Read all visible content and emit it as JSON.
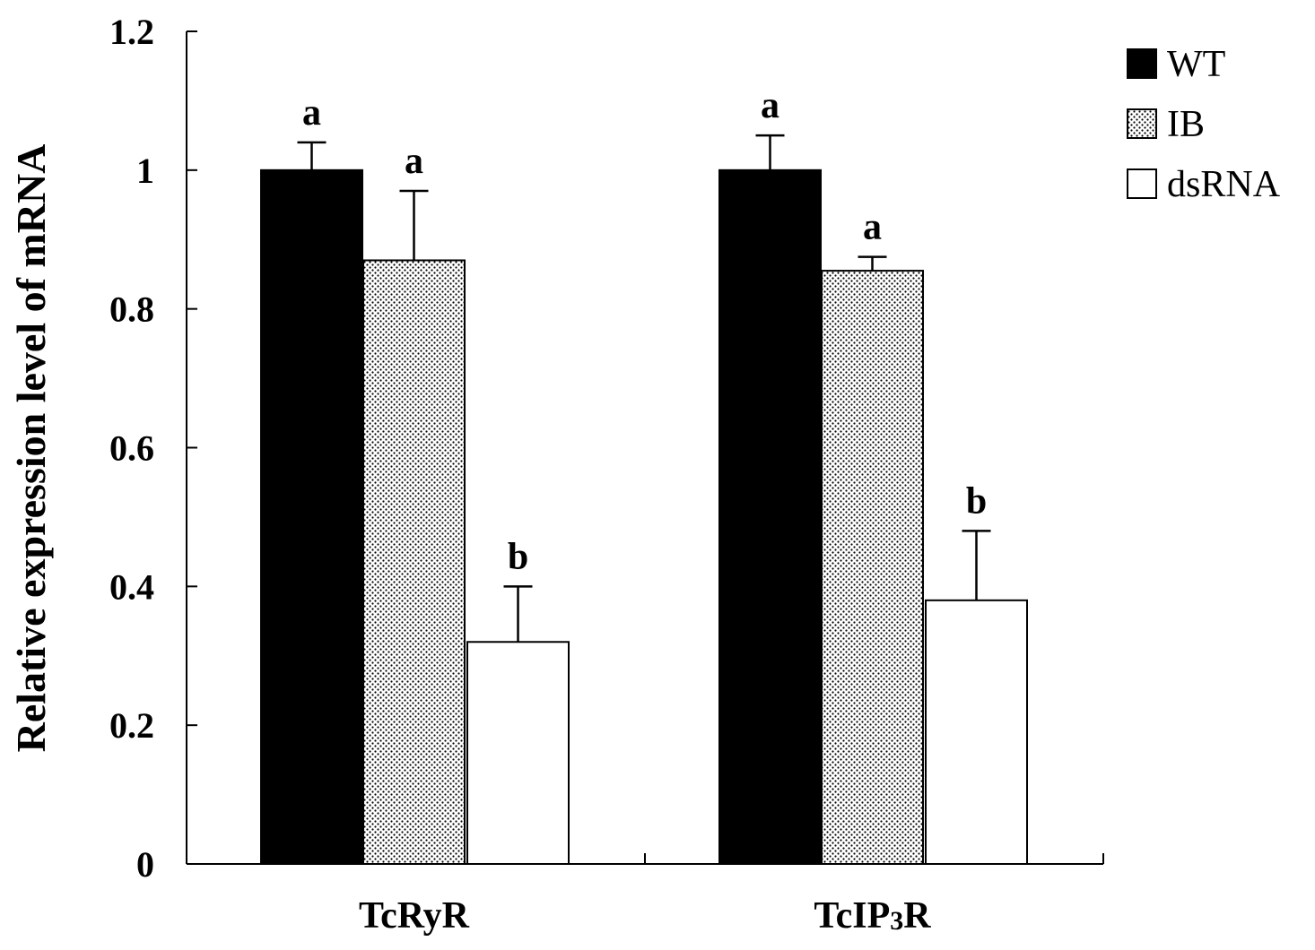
{
  "chart_data": {
    "type": "bar",
    "title": "",
    "xlabel": "",
    "ylabel": "Relative expression level of mRNA",
    "ylim": [
      0,
      1.2
    ],
    "yticks": [
      0,
      0.2,
      0.4,
      0.6,
      0.8,
      1,
      1.2
    ],
    "ytick_labels": [
      "0",
      "0.2",
      "0.4",
      "0.6",
      "0.8",
      "1",
      "1.2"
    ],
    "categories": [
      "TcRyR",
      "TcIP3R"
    ],
    "category_labels": [
      {
        "main": "TcRyR",
        "sub": ""
      },
      {
        "main": "TcIP",
        "sub": "3",
        "rest": "R"
      }
    ],
    "series": [
      {
        "name": "WT",
        "fill": "solid-black",
        "values": [
          1.0,
          1.0
        ],
        "errors": [
          0.04,
          0.05
        ],
        "letters": [
          "a",
          "a"
        ]
      },
      {
        "name": "IB",
        "fill": "dotted",
        "values": [
          0.87,
          0.855
        ],
        "errors": [
          0.1,
          0.02
        ],
        "letters": [
          "a",
          "a"
        ]
      },
      {
        "name": "dsRNA",
        "fill": "white",
        "values": [
          0.32,
          0.38
        ],
        "errors": [
          0.08,
          0.1
        ],
        "letters": [
          "b",
          "b"
        ]
      }
    ],
    "legend_position": "top-right",
    "grid": false
  }
}
